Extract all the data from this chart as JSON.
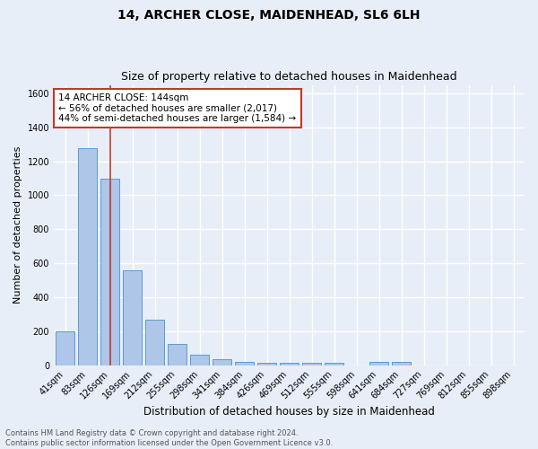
{
  "title": "14, ARCHER CLOSE, MAIDENHEAD, SL6 6LH",
  "subtitle": "Size of property relative to detached houses in Maidenhead",
  "xlabel": "Distribution of detached houses by size in Maidenhead",
  "ylabel": "Number of detached properties",
  "categories": [
    "41sqm",
    "83sqm",
    "126sqm",
    "169sqm",
    "212sqm",
    "255sqm",
    "298sqm",
    "341sqm",
    "384sqm",
    "426sqm",
    "469sqm",
    "512sqm",
    "555sqm",
    "598sqm",
    "641sqm",
    "684sqm",
    "727sqm",
    "769sqm",
    "812sqm",
    "855sqm",
    "898sqm"
  ],
  "values": [
    200,
    1280,
    1100,
    560,
    270,
    125,
    62,
    33,
    20,
    13,
    13,
    13,
    13,
    0,
    18,
    18,
    0,
    0,
    0,
    0,
    0
  ],
  "bar_color": "#aec6e8",
  "bar_edge_color": "#5b9bd5",
  "background_color": "#e8eef7",
  "grid_color": "#ffffff",
  "vline_x": 2.0,
  "vline_color": "#c0392b",
  "annotation_text": "14 ARCHER CLOSE: 144sqm\n← 56% of detached houses are smaller (2,017)\n44% of semi-detached houses are larger (1,584) →",
  "annotation_box_color": "#ffffff",
  "annotation_box_edge_color": "#c0392b",
  "ylim": [
    0,
    1650
  ],
  "yticks": [
    0,
    200,
    400,
    600,
    800,
    1000,
    1200,
    1400,
    1600
  ],
  "footer_text": "Contains HM Land Registry data © Crown copyright and database right 2024.\nContains public sector information licensed under the Open Government Licence v3.0.",
  "title_fontsize": 10,
  "subtitle_fontsize": 9,
  "ylabel_fontsize": 8,
  "xlabel_fontsize": 8.5,
  "tick_fontsize": 7,
  "annotation_fontsize": 7.5,
  "footer_fontsize": 6
}
